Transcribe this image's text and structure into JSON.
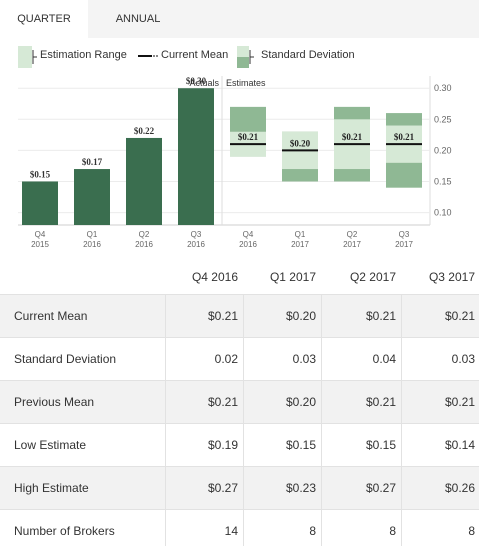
{
  "tabs": [
    {
      "label": "QUARTER",
      "active": true
    },
    {
      "label": "ANNUAL",
      "active": false
    }
  ],
  "legend": {
    "estimation_range": "Estimation Range",
    "current_mean": "Current Mean",
    "standard_deviation": "Standard Deviation"
  },
  "colors": {
    "actual_bar": "#3a6e4f",
    "range_light": "#d6e9d6",
    "stddev_dark": "#8fb894",
    "mean_line": "#111111"
  },
  "chart_data": {
    "type": "bar",
    "section_labels": {
      "actuals": "Actuals",
      "estimates": "Estimates"
    },
    "ylim": [
      0.08,
      0.31
    ],
    "y_ticks": [
      "0.10",
      "0.15",
      "0.20",
      "0.25",
      "0.30"
    ],
    "actuals": [
      {
        "quarter": "Q4",
        "year": "2015",
        "value": 0.15,
        "label": "$0.15"
      },
      {
        "quarter": "Q1",
        "year": "2016",
        "value": 0.17,
        "label": "$0.17"
      },
      {
        "quarter": "Q2",
        "year": "2016",
        "value": 0.22,
        "label": "$0.22"
      },
      {
        "quarter": "Q3",
        "year": "2016",
        "value": 0.3,
        "label": "$0.30"
      }
    ],
    "estimates": [
      {
        "quarter": "Q4",
        "year": "2016",
        "mean": 0.21,
        "low": 0.19,
        "high": 0.27,
        "stddev": 0.02,
        "label": "$0.21"
      },
      {
        "quarter": "Q1",
        "year": "2017",
        "mean": 0.2,
        "low": 0.15,
        "high": 0.23,
        "stddev": 0.03,
        "label": "$0.20"
      },
      {
        "quarter": "Q2",
        "year": "2017",
        "mean": 0.21,
        "low": 0.15,
        "high": 0.27,
        "stddev": 0.04,
        "label": "$0.21"
      },
      {
        "quarter": "Q3",
        "year": "2017",
        "mean": 0.21,
        "low": 0.14,
        "high": 0.26,
        "stddev": 0.03,
        "label": "$0.21"
      }
    ]
  },
  "table": {
    "headers": [
      "Q4 2016",
      "Q1 2017",
      "Q2 2017",
      "Q3 2017"
    ],
    "rows": [
      {
        "label": "Current Mean",
        "values": [
          "$0.21",
          "$0.20",
          "$0.21",
          "$0.21"
        ]
      },
      {
        "label": "Standard Deviation",
        "values": [
          "0.02",
          "0.03",
          "0.04",
          "0.03"
        ]
      },
      {
        "label": "Previous Mean",
        "values": [
          "$0.21",
          "$0.20",
          "$0.21",
          "$0.21"
        ]
      },
      {
        "label": "Low Estimate",
        "values": [
          "$0.19",
          "$0.15",
          "$0.15",
          "$0.14"
        ]
      },
      {
        "label": "High Estimate",
        "values": [
          "$0.27",
          "$0.23",
          "$0.27",
          "$0.26"
        ]
      },
      {
        "label": "Number of Brokers",
        "values": [
          "14",
          "8",
          "8",
          "8"
        ]
      }
    ]
  }
}
